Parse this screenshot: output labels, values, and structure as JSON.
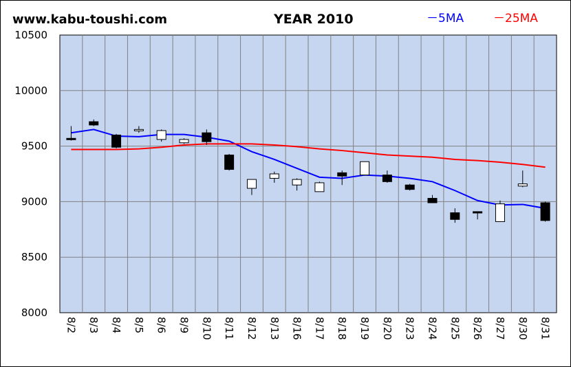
{
  "chart_data": {
    "type": "candlestick",
    "site_label": "www.kabu-toushi.com",
    "title": "YEAR 2010",
    "ylim": [
      8000,
      10500
    ],
    "yticks": [
      8000,
      8500,
      9000,
      9500,
      10000,
      10500
    ],
    "grid": true,
    "legend_position": "top-right",
    "categories": [
      "8/2",
      "8/3",
      "8/4",
      "8/5",
      "8/6",
      "8/9",
      "8/10",
      "8/11",
      "8/12",
      "8/13",
      "8/16",
      "8/17",
      "8/18",
      "8/19",
      "8/20",
      "8/23",
      "8/24",
      "8/25",
      "8/26",
      "8/27",
      "8/30",
      "8/31"
    ],
    "ohlc": [
      {
        "open": 9570,
        "high": 9680,
        "low": 9550,
        "close": 9560
      },
      {
        "open": 9720,
        "high": 9740,
        "low": 9680,
        "close": 9690
      },
      {
        "open": 9600,
        "high": 9610,
        "low": 9480,
        "close": 9490
      },
      {
        "open": 9640,
        "high": 9680,
        "low": 9620,
        "close": 9650
      },
      {
        "open": 9560,
        "high": 9650,
        "low": 9540,
        "close": 9640
      },
      {
        "open": 9530,
        "high": 9570,
        "low": 9520,
        "close": 9560
      },
      {
        "open": 9620,
        "high": 9650,
        "low": 9510,
        "close": 9540
      },
      {
        "open": 9420,
        "high": 9430,
        "low": 9280,
        "close": 9290
      },
      {
        "open": 9120,
        "high": 9200,
        "low": 9060,
        "close": 9200
      },
      {
        "open": 9210,
        "high": 9270,
        "low": 9170,
        "close": 9250
      },
      {
        "open": 9150,
        "high": 9210,
        "low": 9100,
        "close": 9200
      },
      {
        "open": 9090,
        "high": 9180,
        "low": 9090,
        "close": 9170
      },
      {
        "open": 9260,
        "high": 9280,
        "low": 9150,
        "close": 9230
      },
      {
        "open": 9240,
        "high": 9360,
        "low": 9240,
        "close": 9360
      },
      {
        "open": 9240,
        "high": 9280,
        "low": 9170,
        "close": 9180
      },
      {
        "open": 9150,
        "high": 9160,
        "low": 9100,
        "close": 9110
      },
      {
        "open": 9030,
        "high": 9060,
        "low": 8990,
        "close": 8990
      },
      {
        "open": 8900,
        "high": 8940,
        "low": 8810,
        "close": 8840
      },
      {
        "open": 8910,
        "high": 8910,
        "low": 8840,
        "close": 8900
      },
      {
        "open": 8820,
        "high": 9010,
        "low": 8820,
        "close": 8980
      },
      {
        "open": 9140,
        "high": 9280,
        "low": 9130,
        "close": 9160
      },
      {
        "open": 8990,
        "high": 9000,
        "low": 8820,
        "close": 8830
      }
    ],
    "series": [
      {
        "name": "5MA",
        "color": "#0000ff",
        "values": [
          9620,
          9650,
          9590,
          9585,
          9605,
          9605,
          9580,
          9545,
          9450,
          9380,
          9300,
          9220,
          9210,
          9240,
          9230,
          9210,
          9180,
          9100,
          9010,
          8970,
          8975,
          8940
        ]
      },
      {
        "name": "25MA",
        "color": "#ff0000",
        "values": [
          9470,
          9470,
          9470,
          9475,
          9490,
          9510,
          9520,
          9520,
          9520,
          9510,
          9495,
          9475,
          9460,
          9440,
          9420,
          9410,
          9400,
          9380,
          9370,
          9355,
          9335,
          9310
        ]
      }
    ],
    "legend": [
      {
        "label": "－5MA",
        "color": "#0000ff"
      },
      {
        "label": "－25MA",
        "color": "#ff0000"
      }
    ]
  }
}
